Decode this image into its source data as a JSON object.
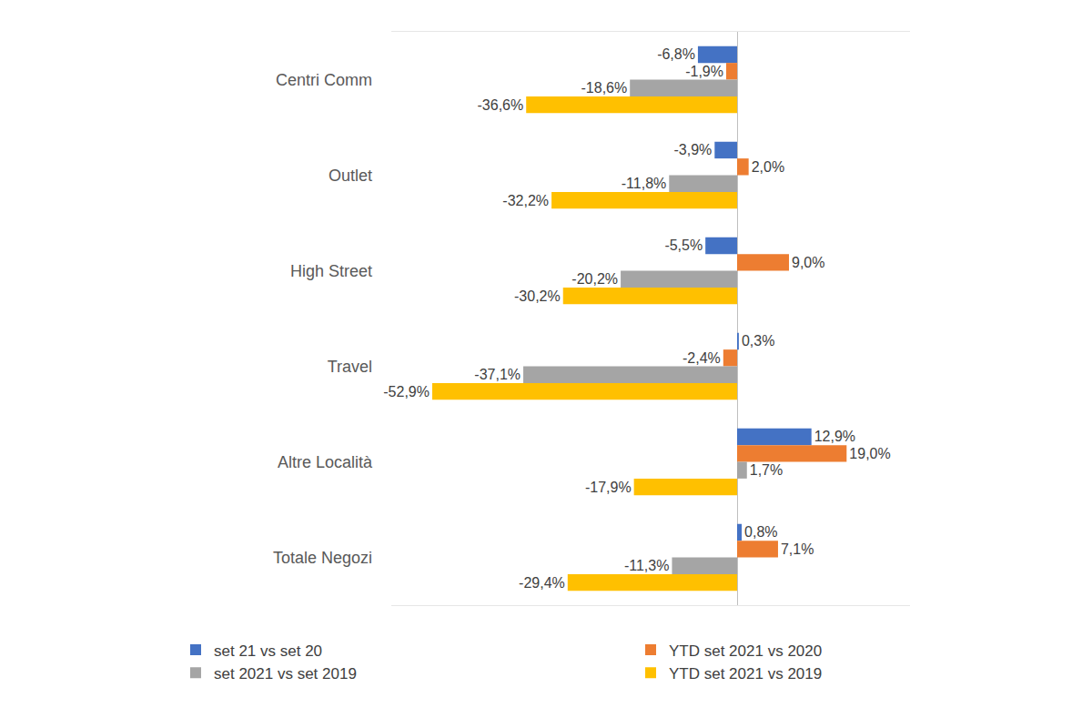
{
  "chart_data": {
    "type": "bar",
    "orientation": "horizontal",
    "categories": [
      "Centri Comm",
      "Outlet",
      "High Street",
      "Travel",
      "Altre Località",
      "Totale Negozi"
    ],
    "series": [
      {
        "name": "set 21 vs set 20",
        "color": "#4472C4",
        "values": [
          -6.8,
          -3.9,
          -5.5,
          0.3,
          12.9,
          0.8
        ],
        "value_labels": [
          "-6,8%",
          "-3,9%",
          "-5,5%",
          "0,3%",
          "12,9%",
          "0,8%"
        ]
      },
      {
        "name": "YTD set 2021 vs 2020",
        "color": "#ED7D31",
        "values": [
          -1.9,
          2.0,
          9.0,
          -2.4,
          19.0,
          7.1
        ],
        "value_labels": [
          "-1,9%",
          "2,0%",
          "9,0%",
          "-2,4%",
          "19,0%",
          "7,1%"
        ]
      },
      {
        "name": "set 2021 vs set 2019",
        "color": "#A5A5A5",
        "values": [
          -18.6,
          -11.8,
          -20.2,
          -37.1,
          1.7,
          -11.3
        ],
        "value_labels": [
          "-18,6%",
          "-11,8%",
          "-20,2%",
          "-37,1%",
          "1,7%",
          "-11,3%"
        ]
      },
      {
        "name": "YTD set 2021 vs 2019",
        "color": "#FFC000",
        "values": [
          -36.6,
          -32.2,
          -30.2,
          -52.9,
          -17.9,
          -29.4
        ],
        "value_labels": [
          "-36,6%",
          "-32,2%",
          "-30,2%",
          "-52,9%",
          "-17,9%",
          "-29,4%"
        ]
      }
    ],
    "xlim": [
      -60,
      30
    ],
    "xticks": [],
    "grid": false,
    "legend": "bottom",
    "data_labels": true,
    "tick_labels": "y"
  }
}
